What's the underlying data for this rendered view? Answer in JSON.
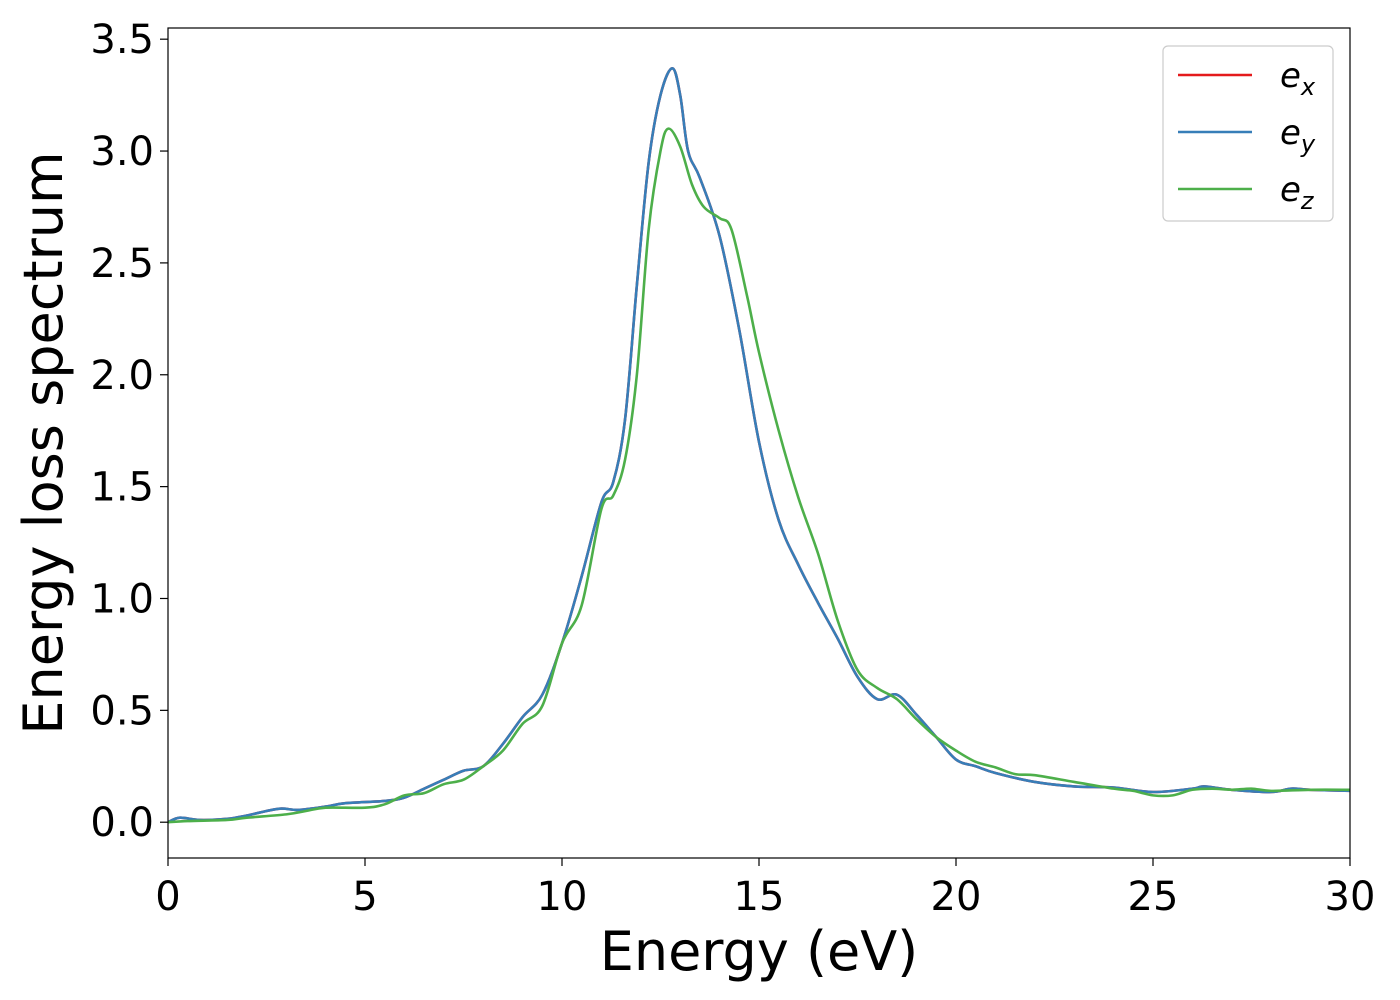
{
  "chart_data": {
    "type": "line",
    "xlabel": "Energy (eV)",
    "ylabel": "Energy loss spectrum",
    "xlim": [
      0,
      30
    ],
    "ylim": [
      -0.16,
      3.55
    ],
    "xticks": [
      0,
      5,
      10,
      15,
      20,
      25,
      30
    ],
    "xtick_labels": [
      "0",
      "5",
      "10",
      "15",
      "20",
      "25",
      "30"
    ],
    "yticks": [
      0.0,
      0.5,
      1.0,
      1.5,
      2.0,
      2.5,
      3.0,
      3.5
    ],
    "ytick_labels": [
      "0.0",
      "0.5",
      "1.0",
      "1.5",
      "2.0",
      "2.5",
      "3.0",
      "3.5"
    ],
    "grid": false,
    "legend_position": "top-right",
    "series": [
      {
        "name": "e_x",
        "label_base": "e",
        "label_sub": "x",
        "color": "#e41a1c",
        "points": [
          [
            0,
            0.0
          ],
          [
            0.3,
            0.02
          ],
          [
            0.8,
            0.01
          ],
          [
            1.5,
            0.015
          ],
          [
            2.0,
            0.03
          ],
          [
            2.8,
            0.06
          ],
          [
            3.3,
            0.055
          ],
          [
            4.0,
            0.07
          ],
          [
            4.5,
            0.085
          ],
          [
            5.5,
            0.095
          ],
          [
            6.0,
            0.11
          ],
          [
            6.5,
            0.15
          ],
          [
            7.0,
            0.19
          ],
          [
            7.5,
            0.23
          ],
          [
            8.0,
            0.25
          ],
          [
            8.5,
            0.35
          ],
          [
            9.0,
            0.47
          ],
          [
            9.5,
            0.57
          ],
          [
            10.0,
            0.8
          ],
          [
            10.5,
            1.1
          ],
          [
            11.0,
            1.43
          ],
          [
            11.3,
            1.52
          ],
          [
            11.6,
            1.8
          ],
          [
            11.9,
            2.4
          ],
          [
            12.2,
            2.95
          ],
          [
            12.5,
            3.25
          ],
          [
            12.8,
            3.37
          ],
          [
            13.0,
            3.25
          ],
          [
            13.2,
            3.0
          ],
          [
            13.5,
            2.88
          ],
          [
            14.0,
            2.62
          ],
          [
            14.5,
            2.2
          ],
          [
            15.0,
            1.7
          ],
          [
            15.5,
            1.35
          ],
          [
            16.0,
            1.15
          ],
          [
            16.5,
            0.98
          ],
          [
            17.0,
            0.82
          ],
          [
            17.5,
            0.65
          ],
          [
            18.0,
            0.55
          ],
          [
            18.5,
            0.57
          ],
          [
            19.0,
            0.48
          ],
          [
            19.5,
            0.38
          ],
          [
            20.0,
            0.28
          ],
          [
            20.5,
            0.25
          ],
          [
            21.0,
            0.22
          ],
          [
            22.0,
            0.18
          ],
          [
            23.0,
            0.16
          ],
          [
            24.0,
            0.155
          ],
          [
            25.0,
            0.135
          ],
          [
            26.0,
            0.15
          ],
          [
            26.3,
            0.16
          ],
          [
            27.0,
            0.145
          ],
          [
            28.0,
            0.135
          ],
          [
            28.5,
            0.15
          ],
          [
            29.0,
            0.145
          ],
          [
            30.0,
            0.14
          ]
        ]
      },
      {
        "name": "e_y",
        "label_base": "e",
        "label_sub": "y",
        "color": "#377eb8",
        "points": [
          [
            0,
            0.0
          ],
          [
            0.3,
            0.02
          ],
          [
            0.8,
            0.01
          ],
          [
            1.5,
            0.015
          ],
          [
            2.0,
            0.03
          ],
          [
            2.8,
            0.06
          ],
          [
            3.3,
            0.055
          ],
          [
            4.0,
            0.07
          ],
          [
            4.5,
            0.085
          ],
          [
            5.5,
            0.095
          ],
          [
            6.0,
            0.11
          ],
          [
            6.5,
            0.15
          ],
          [
            7.0,
            0.19
          ],
          [
            7.5,
            0.23
          ],
          [
            8.0,
            0.25
          ],
          [
            8.5,
            0.35
          ],
          [
            9.0,
            0.47
          ],
          [
            9.5,
            0.57
          ],
          [
            10.0,
            0.8
          ],
          [
            10.5,
            1.1
          ],
          [
            11.0,
            1.43
          ],
          [
            11.3,
            1.52
          ],
          [
            11.6,
            1.8
          ],
          [
            11.9,
            2.4
          ],
          [
            12.2,
            2.95
          ],
          [
            12.5,
            3.25
          ],
          [
            12.8,
            3.37
          ],
          [
            13.0,
            3.25
          ],
          [
            13.2,
            3.0
          ],
          [
            13.5,
            2.88
          ],
          [
            14.0,
            2.62
          ],
          [
            14.5,
            2.2
          ],
          [
            15.0,
            1.7
          ],
          [
            15.5,
            1.35
          ],
          [
            16.0,
            1.15
          ],
          [
            16.5,
            0.98
          ],
          [
            17.0,
            0.82
          ],
          [
            17.5,
            0.65
          ],
          [
            18.0,
            0.55
          ],
          [
            18.5,
            0.57
          ],
          [
            19.0,
            0.48
          ],
          [
            19.5,
            0.38
          ],
          [
            20.0,
            0.28
          ],
          [
            20.5,
            0.25
          ],
          [
            21.0,
            0.22
          ],
          [
            22.0,
            0.18
          ],
          [
            23.0,
            0.16
          ],
          [
            24.0,
            0.155
          ],
          [
            25.0,
            0.135
          ],
          [
            26.0,
            0.15
          ],
          [
            26.3,
            0.16
          ],
          [
            27.0,
            0.145
          ],
          [
            28.0,
            0.135
          ],
          [
            28.5,
            0.15
          ],
          [
            29.0,
            0.145
          ],
          [
            30.0,
            0.14
          ]
        ]
      },
      {
        "name": "e_z",
        "label_base": "e",
        "label_sub": "z",
        "color": "#4daf4a",
        "points": [
          [
            0,
            0.0
          ],
          [
            0.5,
            0.005
          ],
          [
            1.5,
            0.01
          ],
          [
            2.0,
            0.02
          ],
          [
            3.0,
            0.035
          ],
          [
            3.5,
            0.05
          ],
          [
            4.0,
            0.065
          ],
          [
            5.0,
            0.065
          ],
          [
            5.5,
            0.08
          ],
          [
            6.0,
            0.12
          ],
          [
            6.5,
            0.13
          ],
          [
            7.0,
            0.17
          ],
          [
            7.5,
            0.19
          ],
          [
            8.0,
            0.25
          ],
          [
            8.5,
            0.32
          ],
          [
            9.0,
            0.44
          ],
          [
            9.5,
            0.52
          ],
          [
            10.0,
            0.8
          ],
          [
            10.5,
            0.97
          ],
          [
            11.0,
            1.4
          ],
          [
            11.3,
            1.46
          ],
          [
            11.6,
            1.62
          ],
          [
            11.9,
            2.0
          ],
          [
            12.2,
            2.65
          ],
          [
            12.5,
            3.0
          ],
          [
            12.7,
            3.1
          ],
          [
            13.0,
            3.02
          ],
          [
            13.3,
            2.85
          ],
          [
            13.6,
            2.75
          ],
          [
            14.0,
            2.7
          ],
          [
            14.3,
            2.65
          ],
          [
            14.7,
            2.35
          ],
          [
            15.0,
            2.1
          ],
          [
            15.5,
            1.75
          ],
          [
            16.0,
            1.45
          ],
          [
            16.5,
            1.2
          ],
          [
            17.0,
            0.9
          ],
          [
            17.5,
            0.68
          ],
          [
            18.0,
            0.6
          ],
          [
            18.5,
            0.55
          ],
          [
            19.0,
            0.46
          ],
          [
            19.5,
            0.38
          ],
          [
            20.0,
            0.32
          ],
          [
            20.5,
            0.27
          ],
          [
            21.0,
            0.245
          ],
          [
            21.5,
            0.215
          ],
          [
            22.0,
            0.21
          ],
          [
            23.0,
            0.18
          ],
          [
            24.0,
            0.15
          ],
          [
            24.5,
            0.14
          ],
          [
            25.0,
            0.12
          ],
          [
            25.5,
            0.12
          ],
          [
            26.0,
            0.145
          ],
          [
            26.5,
            0.15
          ],
          [
            27.0,
            0.145
          ],
          [
            27.5,
            0.15
          ],
          [
            28.0,
            0.14
          ],
          [
            29.0,
            0.145
          ],
          [
            30.0,
            0.145
          ]
        ]
      }
    ]
  }
}
